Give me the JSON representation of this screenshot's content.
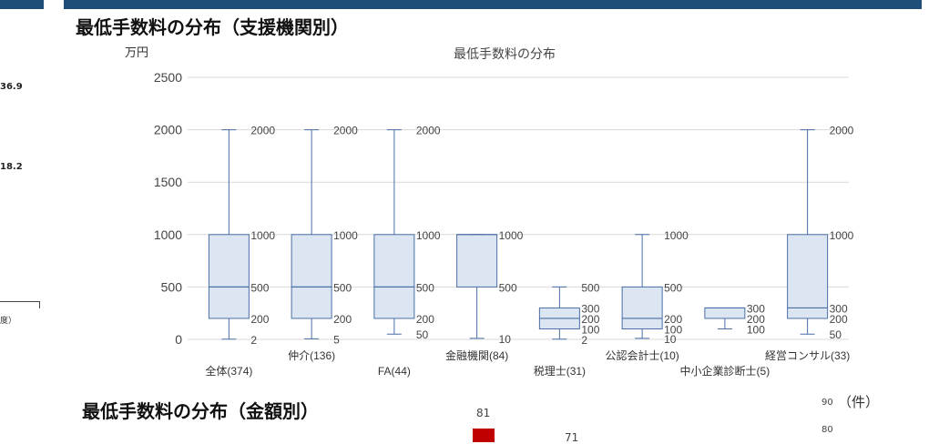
{
  "colors": {
    "header_bar": "#1f4e79",
    "box_fill": "#dce6f2",
    "box_stroke": "#4a6ea6",
    "grid": "#d9d9d9",
    "bar_red": "#c00000"
  },
  "left_strip": {
    "value_a": "36.9",
    "value_b": "18.2",
    "caption": "度）"
  },
  "section1_title": "最低手数料の分布（支援機関別）",
  "section2_title": "最低手数料の分布（金額別）",
  "chart_data": {
    "type": "box",
    "title": "最低手数料の分布",
    "ylabel": "万円",
    "ylim": [
      0,
      2500
    ],
    "yticks": [
      "0",
      "500",
      "1000",
      "1500",
      "2000",
      "2500"
    ],
    "grid": true,
    "categories": [
      "全体(374)",
      "仲介(136)",
      "FA(44)",
      "金融機関(84)",
      "税理士(31)",
      "公認会計士(10)",
      "中小企業診断士(5)",
      "経営コンサル(33)"
    ],
    "boxes": [
      {
        "min": 2,
        "q1": 200,
        "median": 500,
        "q3": 1000,
        "max": 2000,
        "labels": [
          "2000",
          "1000",
          "500",
          "200",
          "2"
        ]
      },
      {
        "min": 5,
        "q1": 200,
        "median": 500,
        "q3": 1000,
        "max": 2000,
        "labels": [
          "2000",
          "1000",
          "500",
          "200",
          "5"
        ]
      },
      {
        "min": 50,
        "q1": 200,
        "median": 500,
        "q3": 1000,
        "max": 2000,
        "labels": [
          "2000",
          "1000",
          "500",
          "200",
          "50"
        ]
      },
      {
        "min": 10,
        "q1": 500,
        "median": 1000,
        "q3": 1000,
        "max": 1000,
        "labels": [
          "1000",
          "500",
          "10"
        ]
      },
      {
        "min": 2,
        "q1": 100,
        "median": 200,
        "q3": 300,
        "max": 500,
        "labels": [
          "500",
          "300",
          "200",
          "100",
          "2"
        ]
      },
      {
        "min": 10,
        "q1": 100,
        "median": 200,
        "q3": 500,
        "max": 1000,
        "labels": [
          "1000",
          "500",
          "200",
          "100",
          "10"
        ]
      },
      {
        "min": 100,
        "q1": 200,
        "median": 300,
        "q3": 300,
        "max": 300,
        "labels": [
          "300",
          "200",
          "100"
        ]
      },
      {
        "min": 50,
        "q1": 200,
        "median": 300,
        "q3": 1000,
        "max": 2000,
        "labels": [
          "2000",
          "1000",
          "300",
          "200",
          "50"
        ]
      }
    ]
  },
  "section2": {
    "unit": "（件）",
    "left_axis_ticks": [
      "90",
      "80"
    ],
    "bar_labels": [
      "81",
      "71"
    ]
  }
}
